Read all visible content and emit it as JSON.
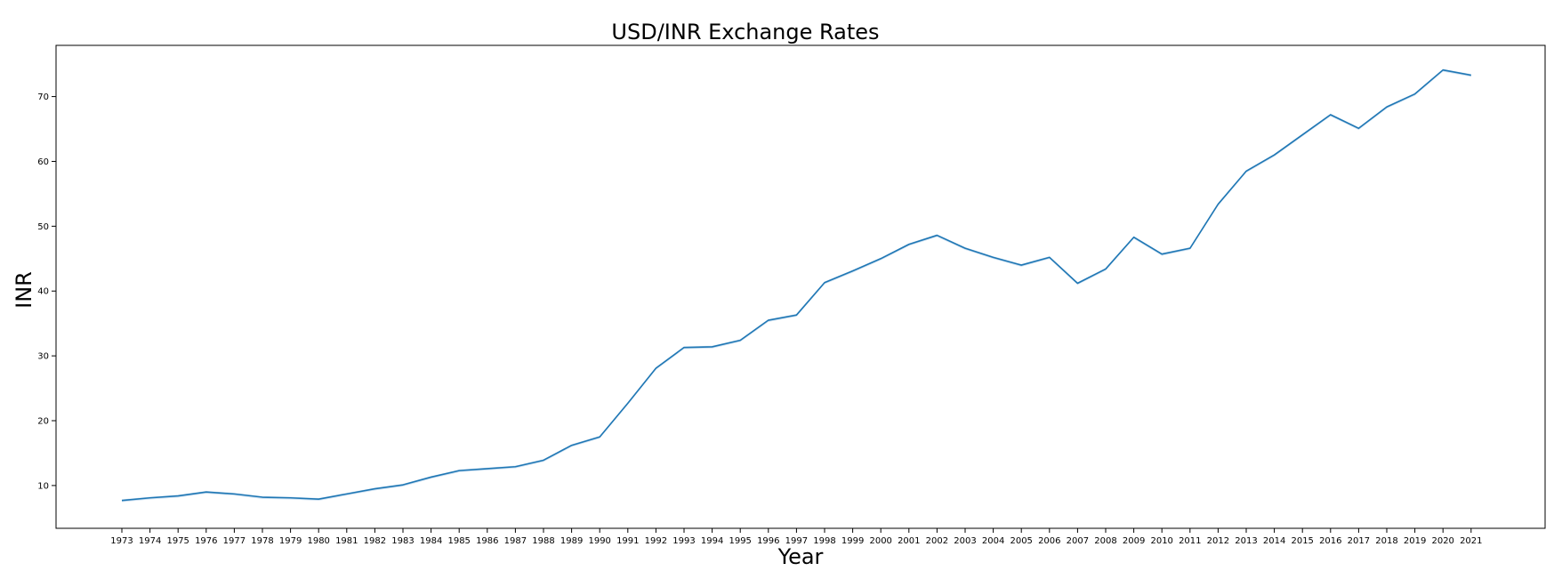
{
  "chart_data": {
    "type": "line",
    "title": "USD/INR Exchange Rates",
    "xlabel": "Year",
    "ylabel": "INR",
    "x": [
      "1973",
      "1974",
      "1975",
      "1976",
      "1977",
      "1978",
      "1979",
      "1980",
      "1981",
      "1982",
      "1983",
      "1984",
      "1985",
      "1986",
      "1987",
      "1988",
      "1989",
      "1990",
      "1991",
      "1992",
      "1993",
      "1994",
      "1995",
      "1996",
      "1997",
      "1998",
      "1999",
      "2000",
      "2001",
      "2002",
      "2003",
      "2004",
      "2005",
      "2006",
      "2007",
      "2008",
      "2009",
      "2010",
      "2011",
      "2012",
      "2013",
      "2014",
      "2015",
      "2016",
      "2017",
      "2018",
      "2019",
      "2020",
      "2021"
    ],
    "series": [
      {
        "values": [
          7.7,
          8.1,
          8.4,
          9.0,
          8.7,
          8.2,
          8.1,
          7.9,
          8.7,
          9.5,
          10.1,
          11.3,
          12.3,
          12.6,
          12.9,
          13.9,
          16.2,
          17.5,
          22.7,
          28.1,
          31.3,
          31.4,
          32.4,
          35.5,
          36.3,
          41.3,
          43.1,
          45.0,
          47.2,
          48.6,
          46.6,
          45.2,
          44.0,
          45.2,
          41.2,
          43.4,
          48.3,
          45.7,
          46.6,
          53.4,
          58.5,
          61.0,
          64.1,
          67.2,
          65.1,
          68.4,
          70.4,
          74.1,
          73.3
        ]
      }
    ],
    "ylim": [
      3.4,
      77.9
    ],
    "yticks": [
      10,
      20,
      30,
      40,
      50,
      60,
      70
    ],
    "grid": false,
    "legend": "none",
    "colors": {
      "line": "#1f77b4",
      "band": "#a6c8e8"
    }
  }
}
